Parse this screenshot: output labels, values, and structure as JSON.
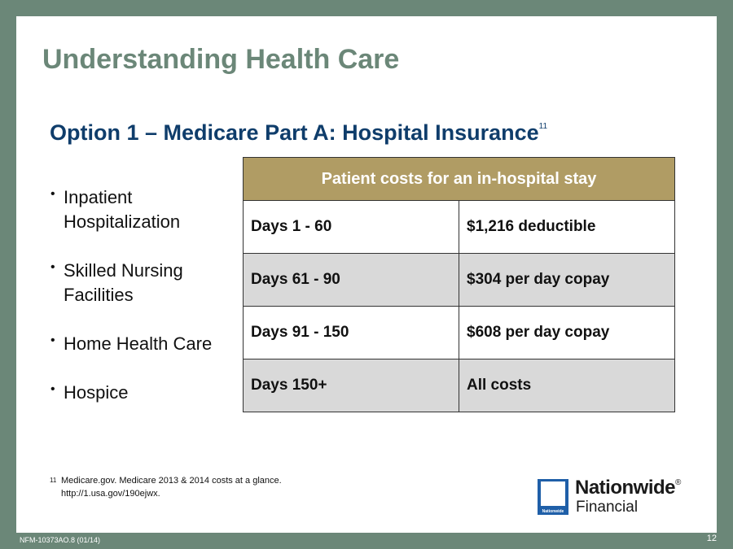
{
  "slide": {
    "title": "Understanding Health Care",
    "subtitle": "Option 1 – Medicare Part A: Hospital Insurance",
    "subtitle_ref": "11",
    "bullet_glyph": "•",
    "bullets": [
      "Inpatient Hospitalization",
      "Skilled Nursing Facilities",
      "Home Health Care",
      "Hospice"
    ],
    "table": {
      "header": "Patient costs for an in-hospital stay",
      "rows": [
        {
          "days": "Days 1 - 60",
          "cost": "$1,216 deductible"
        },
        {
          "days": "Days 61 - 90",
          "cost": "$304 per day copay"
        },
        {
          "days": "Days 91 - 150",
          "cost": "$608 per day copay"
        },
        {
          "days": "Days 150+",
          "cost": "All costs"
        }
      ]
    },
    "footnote": {
      "number": "11",
      "line1": "Medicare.gov. Medicare 2013 & 2014 costs at a glance.",
      "line2": "http://1.usa.gov/190ejwx."
    }
  },
  "logo": {
    "name": "Nationwide",
    "registered": "®",
    "sub": "Financial",
    "mark_text": "Nationwide"
  },
  "footer": {
    "code": "NFM-10373AO.8 (01/14)",
    "page_number": "12"
  },
  "colors": {
    "background": "#6b8778",
    "title": "#6b8778",
    "subtitle": "#0f3d6b",
    "table_header": "#b09c64",
    "shaded_row": "#d9d9d9",
    "logo_blue": "#1f5fa8"
  }
}
